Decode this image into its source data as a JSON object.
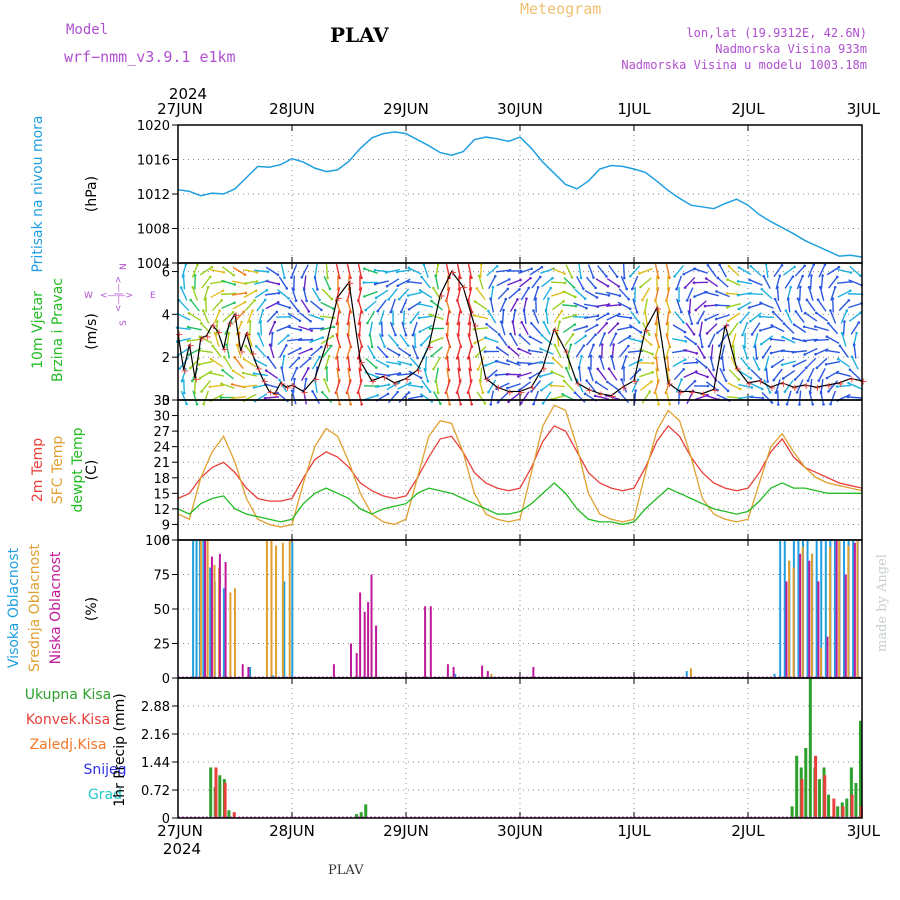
{
  "header": {
    "model_label": "Model",
    "model_name": "wrf−nmm_v3.9.1  e1km",
    "station": "PLAV",
    "product": "Meteogram",
    "lonlat": "lon,lat (19.9312E, 42.6N)",
    "elevation": "Nadmorska Visina 933m",
    "model_elevation": "Nadmorska Visina u modelu 1003.18m",
    "footer_station": "PLAV",
    "signature": "made by Angel"
  },
  "colors": {
    "pressure": "#1f9fe0",
    "temp2m": "#e8403a",
    "sfc": "#e0a030",
    "dewpt": "#22bb22",
    "high_cloud": "#1f9fe0",
    "mid_cloud": "#e0a030",
    "low_cloud": "#c0189a",
    "total_precip": "#2ea02e",
    "conv_precip": "#e8403a",
    "frz_precip": "#f07828",
    "snow": "#3030e0",
    "hail": "#20c8c8",
    "purple_text": "#b050d0",
    "meteogram_title": "#f0c070"
  },
  "chart_data": [
    {
      "type": "line",
      "x_axis": {
        "top_year": "2024",
        "bottom_year": "2024",
        "ticks": [
          "27JUN",
          "28JUN",
          "29JUN",
          "30JUN",
          "1JUL",
          "2JUL",
          "3JUL"
        ]
      },
      "panel": "pressure",
      "title_lines": [
        "Pritisak na nivou mora"
      ],
      "unit": "(hPa)",
      "ylim": [
        1004,
        1020
      ],
      "yticks": [
        1004,
        1008,
        1012,
        1016,
        1020
      ],
      "x_days": [
        0,
        0.1,
        0.2,
        0.3,
        0.4,
        0.5,
        0.6,
        0.7,
        0.8,
        0.9,
        1.0,
        1.1,
        1.2,
        1.3,
        1.4,
        1.5,
        1.6,
        1.7,
        1.8,
        1.9,
        2.0,
        2.1,
        2.2,
        2.3,
        2.4,
        2.5,
        2.6,
        2.7,
        2.8,
        2.9,
        3.0,
        3.1,
        3.2,
        3.3,
        3.4,
        3.5,
        3.6,
        3.7,
        3.8,
        3.9,
        4.0,
        4.1,
        4.2,
        4.3,
        4.4,
        4.5,
        4.6,
        4.7,
        4.8,
        4.9,
        5.0,
        5.1,
        5.2,
        5.3,
        5.4,
        5.5,
        5.6,
        5.7,
        5.8,
        5.9,
        6.0
      ],
      "values": [
        1012.5,
        1012.3,
        1011.8,
        1012.1,
        1012.0,
        1012.6,
        1013.9,
        1015.2,
        1015.1,
        1015.4,
        1016.1,
        1015.7,
        1015.0,
        1014.6,
        1014.8,
        1015.8,
        1017.3,
        1018.5,
        1019.0,
        1019.2,
        1019.0,
        1018.3,
        1017.6,
        1016.8,
        1016.5,
        1016.9,
        1018.3,
        1018.6,
        1018.4,
        1018.1,
        1018.6,
        1017.3,
        1015.7,
        1014.4,
        1013.1,
        1012.6,
        1013.5,
        1014.9,
        1015.3,
        1015.2,
        1014.9,
        1014.5,
        1013.5,
        1012.4,
        1011.5,
        1010.7,
        1010.5,
        1010.3,
        1010.9,
        1011.4,
        1010.7,
        1009.6,
        1008.8,
        1008.1,
        1007.4,
        1006.6,
        1006.0,
        1005.4,
        1004.8,
        1004.9,
        1004.7
      ]
    },
    {
      "type": "line",
      "panel": "wind",
      "title_lines": [
        "10m Vjetar",
        "Brzina i Pravac"
      ],
      "unit": "(m/s)",
      "compass": {
        "n": "N",
        "s": "S",
        "w": "W",
        "e": "E"
      },
      "ylim": [
        0,
        6.4
      ],
      "yticks": [
        0,
        2,
        4,
        6
      ],
      "x_days": [
        0,
        0.05,
        0.1,
        0.15,
        0.2,
        0.25,
        0.3,
        0.35,
        0.4,
        0.45,
        0.5,
        0.55,
        0.6,
        0.65,
        0.7,
        0.75,
        0.8,
        0.85,
        0.9,
        0.95,
        1.0,
        1.1,
        1.2,
        1.3,
        1.4,
        1.5,
        1.6,
        1.7,
        1.8,
        1.9,
        2.0,
        2.1,
        2.2,
        2.3,
        2.4,
        2.5,
        2.6,
        2.7,
        2.8,
        2.9,
        3.0,
        3.1,
        3.2,
        3.3,
        3.4,
        3.5,
        3.6,
        3.7,
        3.8,
        3.9,
        4.0,
        4.1,
        4.2,
        4.3,
        4.4,
        4.5,
        4.6,
        4.7,
        4.8,
        4.9,
        5.0,
        5.1,
        5.2,
        5.3,
        5.4,
        5.5,
        5.6,
        5.7,
        5.8,
        5.9,
        6.0
      ],
      "values": [
        3.1,
        1.4,
        2.6,
        1.0,
        2.9,
        3.0,
        3.5,
        3.2,
        2.4,
        3.6,
        4.0,
        2.3,
        3.1,
        2.2,
        1.5,
        0.9,
        0.4,
        0.3,
        0.8,
        0.6,
        0.7,
        0.4,
        1.0,
        2.6,
        4.8,
        5.5,
        1.8,
        0.9,
        1.1,
        0.8,
        1.0,
        1.4,
        2.5,
        4.9,
        6.0,
        5.3,
        3.5,
        1.0,
        0.6,
        0.4,
        0.4,
        0.6,
        1.5,
        3.3,
        2.3,
        0.8,
        0.5,
        0.3,
        0.2,
        0.6,
        0.9,
        3.3,
        4.3,
        0.8,
        0.4,
        0.4,
        0.3,
        0.5,
        3.5,
        1.5,
        0.8,
        0.9,
        0.6,
        0.8,
        0.6,
        0.7,
        0.6,
        0.7,
        0.8,
        1.0,
        0.9
      ]
    },
    {
      "type": "line",
      "panel": "temperature",
      "title_lines": [
        "2m Temp",
        "SFC Temp",
        "dewpt Temp"
      ],
      "unit": "(C)",
      "ylim": [
        6,
        33
      ],
      "yticks": [
        6,
        9,
        12,
        15,
        18,
        21,
        24,
        27,
        30,
        33
      ],
      "x_days": [
        0,
        0.1,
        0.2,
        0.3,
        0.4,
        0.5,
        0.6,
        0.7,
        0.8,
        0.9,
        1.0,
        1.1,
        1.2,
        1.3,
        1.4,
        1.5,
        1.6,
        1.7,
        1.8,
        1.9,
        2.0,
        2.1,
        2.2,
        2.3,
        2.4,
        2.5,
        2.6,
        2.7,
        2.8,
        2.9,
        3.0,
        3.1,
        3.2,
        3.3,
        3.4,
        3.5,
        3.6,
        3.7,
        3.8,
        3.9,
        4.0,
        4.1,
        4.2,
        4.3,
        4.4,
        4.5,
        4.6,
        4.7,
        4.8,
        4.9,
        5.0,
        5.1,
        5.2,
        5.3,
        5.4,
        5.5,
        5.6,
        5.7,
        5.8,
        5.9,
        6.0
      ],
      "series": [
        {
          "name": "2m Temp",
          "color_key": "temp2m",
          "values": [
            14,
            15,
            18,
            20,
            21,
            19,
            16,
            14,
            13.5,
            13.5,
            14,
            18,
            21.5,
            23,
            22,
            20,
            17,
            15.5,
            14.5,
            14,
            14.5,
            18,
            22,
            25.5,
            26,
            23,
            19,
            17,
            16,
            15.5,
            16,
            20,
            25,
            28,
            27,
            23,
            19,
            17,
            16,
            15.5,
            16,
            20,
            25,
            28,
            26,
            22,
            19,
            17,
            16,
            15.5,
            16,
            19,
            23,
            25.5,
            22,
            20,
            19,
            18,
            17,
            16.5,
            16
          ]
        },
        {
          "name": "SFC Temp",
          "color_key": "sfc",
          "values": [
            11,
            10,
            18,
            23,
            26,
            21,
            14,
            10,
            9,
            8.5,
            9,
            17,
            24,
            27.5,
            26,
            21,
            15,
            11,
            9.5,
            9,
            10,
            18,
            26,
            29,
            28.5,
            23,
            15,
            11,
            10,
            9.5,
            10,
            19,
            28,
            32,
            31,
            24,
            15,
            11,
            10,
            9.5,
            10,
            19,
            27,
            31,
            29,
            22,
            14,
            11,
            10,
            9.5,
            10,
            17,
            24,
            26.5,
            23,
            20,
            18,
            17,
            16.5,
            16,
            15.5
          ]
        },
        {
          "name": "dewpt Temp",
          "color_key": "dewpt",
          "values": [
            12,
            11,
            13,
            14,
            14.5,
            12,
            11,
            10.5,
            10,
            9.5,
            10,
            13,
            15,
            16,
            15,
            14,
            12,
            11,
            12,
            12.5,
            13,
            15,
            16,
            15.5,
            15,
            14,
            13,
            12,
            11,
            11,
            11.5,
            13,
            15,
            17,
            15,
            12,
            10,
            9.5,
            9.5,
            9,
            9.5,
            12,
            14,
            16,
            15,
            14,
            13,
            12,
            11.5,
            11,
            11.5,
            13.5,
            16,
            17,
            16,
            16,
            15.5,
            15,
            15,
            15,
            15
          ]
        }
      ]
    },
    {
      "type": "bar",
      "panel": "cloud",
      "title_lines": [
        "Visoka Oblacnost",
        "Srednja Oblacnost",
        "Niska Oblacnost"
      ],
      "unit": "(%)",
      "ylim": [
        0,
        100
      ],
      "yticks": [
        0,
        25,
        50,
        75,
        100
      ],
      "series": [
        {
          "name": "Visoka Oblacnost",
          "color_key": "high_cloud",
          "x_days": [
            0.15,
            0.18,
            0.21,
            0.24,
            0.3,
            0.34,
            0.38,
            0.42,
            0.65,
            0.85,
            0.95,
            1.02,
            2.45,
            4.48,
            5.25,
            5.3,
            5.34,
            5.38,
            5.42,
            5.46,
            5.5,
            5.54,
            5.58,
            5.62,
            5.66,
            5.7,
            5.74,
            5.78,
            5.82,
            5.86,
            5.9,
            5.94,
            5.98
          ],
          "values": [
            100,
            100,
            100,
            100,
            80,
            70,
            68,
            65,
            8,
            2,
            70,
            98,
            3,
            5,
            3,
            100,
            100,
            85,
            100,
            100,
            100,
            100,
            90,
            100,
            100,
            100,
            100,
            100,
            100,
            100,
            100,
            100,
            100
          ]
        },
        {
          "name": "Srednja Oblacnost",
          "color_key": "mid_cloud",
          "x_days": [
            0.2,
            0.26,
            0.32,
            0.36,
            0.46,
            0.5,
            0.78,
            0.82,
            0.86,
            0.92,
            0.98,
            2.75,
            4.5,
            5.36,
            5.4,
            5.48,
            5.56,
            5.64,
            5.72,
            5.8,
            5.88,
            5.96
          ],
          "values": [
            100,
            100,
            82,
            80,
            62,
            65,
            100,
            100,
            96,
            98,
            100,
            3,
            7,
            85,
            80,
            95,
            90,
            22,
            95,
            100,
            96,
            100
          ]
        },
        {
          "name": "Niska Oblacnost",
          "color_key": "low_cloud",
          "x_days": [
            0.22,
            0.28,
            0.35,
            0.4,
            0.55,
            0.6,
            1.35,
            1.5,
            1.55,
            1.58,
            1.62,
            1.65,
            1.68,
            1.72,
            2.15,
            2.2,
            2.35,
            2.4,
            2.65,
            2.7,
            3.1,
            5.32,
            5.44,
            5.52,
            5.6,
            5.68,
            5.76,
            5.84,
            5.92
          ],
          "values": [
            100,
            88,
            90,
            84,
            10,
            8,
            10,
            25,
            18,
            62,
            48,
            55,
            75,
            38,
            52,
            52,
            10,
            8,
            9,
            5,
            8,
            70,
            90,
            85,
            70,
            30,
            100,
            75,
            98
          ]
        }
      ]
    },
    {
      "type": "bar",
      "panel": "precip",
      "title_lines": [
        "Ukupna  Kisa",
        "Konvek.Kisa",
        "Zaledj.Kisa",
        "Snijeg",
        "Grad"
      ],
      "unit": "1hr Precip (mm)",
      "ylim": [
        0,
        3.6
      ],
      "yticks": [
        0,
        0.72,
        1.44,
        2.16,
        2.88
      ],
      "series": [
        {
          "name": "Ukupna  Kisa",
          "color_key": "total_precip",
          "x_days": [
            0.3,
            0.34,
            0.38,
            0.42,
            0.46,
            1.58,
            1.62,
            1.66,
            5.4,
            5.44,
            5.48,
            5.52,
            5.56,
            5.6,
            5.64,
            5.68,
            5.72,
            5.76,
            5.8,
            5.84,
            5.88,
            5.92,
            5.96,
            6.0
          ],
          "values": [
            1.3,
            0.8,
            1.1,
            1.0,
            0.2,
            0.1,
            0.15,
            0.35,
            0.3,
            1.6,
            1.3,
            1.8,
            3.6,
            1.3,
            1.0,
            1.3,
            0.6,
            0.05,
            0.3,
            0.4,
            0.5,
            1.3,
            0.9,
            2.5
          ]
        },
        {
          "name": "Konvek.Kisa",
          "color_key": "conv_precip",
          "x_days": [
            0.32,
            0.4,
            0.48,
            5.46,
            5.58,
            5.66,
            5.74,
            5.82,
            5.9,
            5.98
          ],
          "values": [
            1.3,
            0.9,
            0.15,
            1.0,
            1.6,
            1.1,
            0.5,
            0.3,
            0.6,
            0.3
          ]
        }
      ]
    }
  ]
}
